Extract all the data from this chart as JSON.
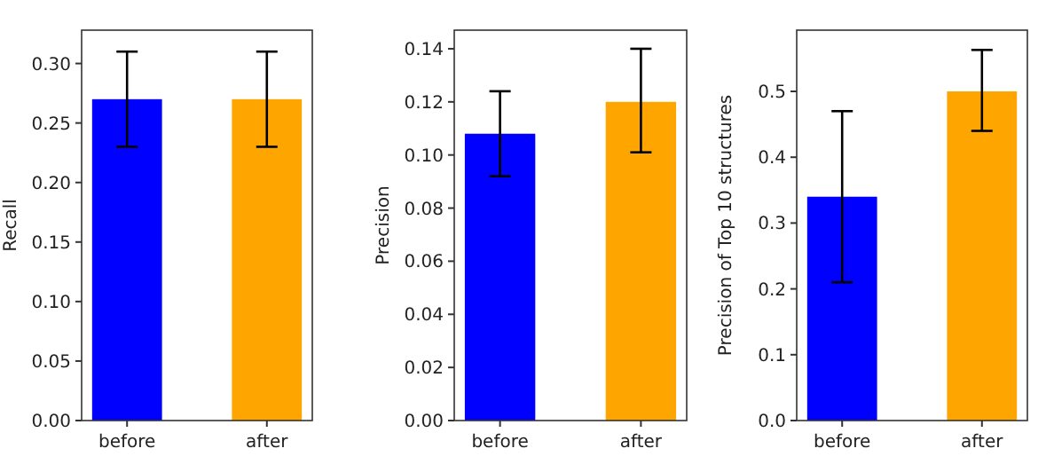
{
  "chart_data": [
    {
      "type": "bar",
      "ylabel": "Recall",
      "categories": [
        "before",
        "after"
      ],
      "values": [
        0.27,
        0.27
      ],
      "colors": [
        "#0000ff",
        "#ffa500"
      ],
      "errors": [
        0.04,
        0.04
      ],
      "ylim": [
        0,
        0.328
      ],
      "yticks": [
        {
          "value": 0,
          "label": "0.00"
        },
        {
          "value": 0.05,
          "label": "0.05"
        },
        {
          "value": 0.1,
          "label": "0.10"
        },
        {
          "value": 0.15,
          "label": "0.15"
        },
        {
          "value": 0.2,
          "label": "0.20"
        },
        {
          "value": 0.25,
          "label": "0.25"
        },
        {
          "value": 0.3,
          "label": "0.30"
        }
      ]
    },
    {
      "type": "bar",
      "ylabel": "Precision",
      "categories": [
        "before",
        "after"
      ],
      "values": [
        0.108,
        0.12
      ],
      "colors": [
        "#0000ff",
        "#ffa500"
      ],
      "errors": [
        [
          0.092,
          0.124
        ],
        [
          0.101,
          0.14
        ]
      ],
      "ylim": [
        0,
        0.147
      ],
      "yticks": [
        {
          "value": 0,
          "label": "0.00"
        },
        {
          "value": 0.02,
          "label": "0.02"
        },
        {
          "value": 0.04,
          "label": "0.04"
        },
        {
          "value": 0.06,
          "label": "0.06"
        },
        {
          "value": 0.08,
          "label": "0.08"
        },
        {
          "value": 0.1,
          "label": "0.10"
        },
        {
          "value": 0.12,
          "label": "0.12"
        },
        {
          "value": 0.14,
          "label": "0.14"
        }
      ]
    },
    {
      "type": "bar",
      "ylabel": "Precision of Top 10 structures",
      "categories": [
        "before",
        "after"
      ],
      "values": [
        0.34,
        0.5
      ],
      "colors": [
        "#0000ff",
        "#ffa500"
      ],
      "errors": [
        [
          0.21,
          0.47
        ],
        [
          0.44,
          0.563
        ]
      ],
      "ylim": [
        0,
        0.593
      ],
      "yticks": [
        {
          "value": 0,
          "label": "0.0"
        },
        {
          "value": 0.1,
          "label": "0.1"
        },
        {
          "value": 0.2,
          "label": "0.2"
        },
        {
          "value": 0.3,
          "label": "0.3"
        },
        {
          "value": 0.4,
          "label": "0.4"
        },
        {
          "value": 0.5,
          "label": "0.5"
        }
      ]
    }
  ]
}
